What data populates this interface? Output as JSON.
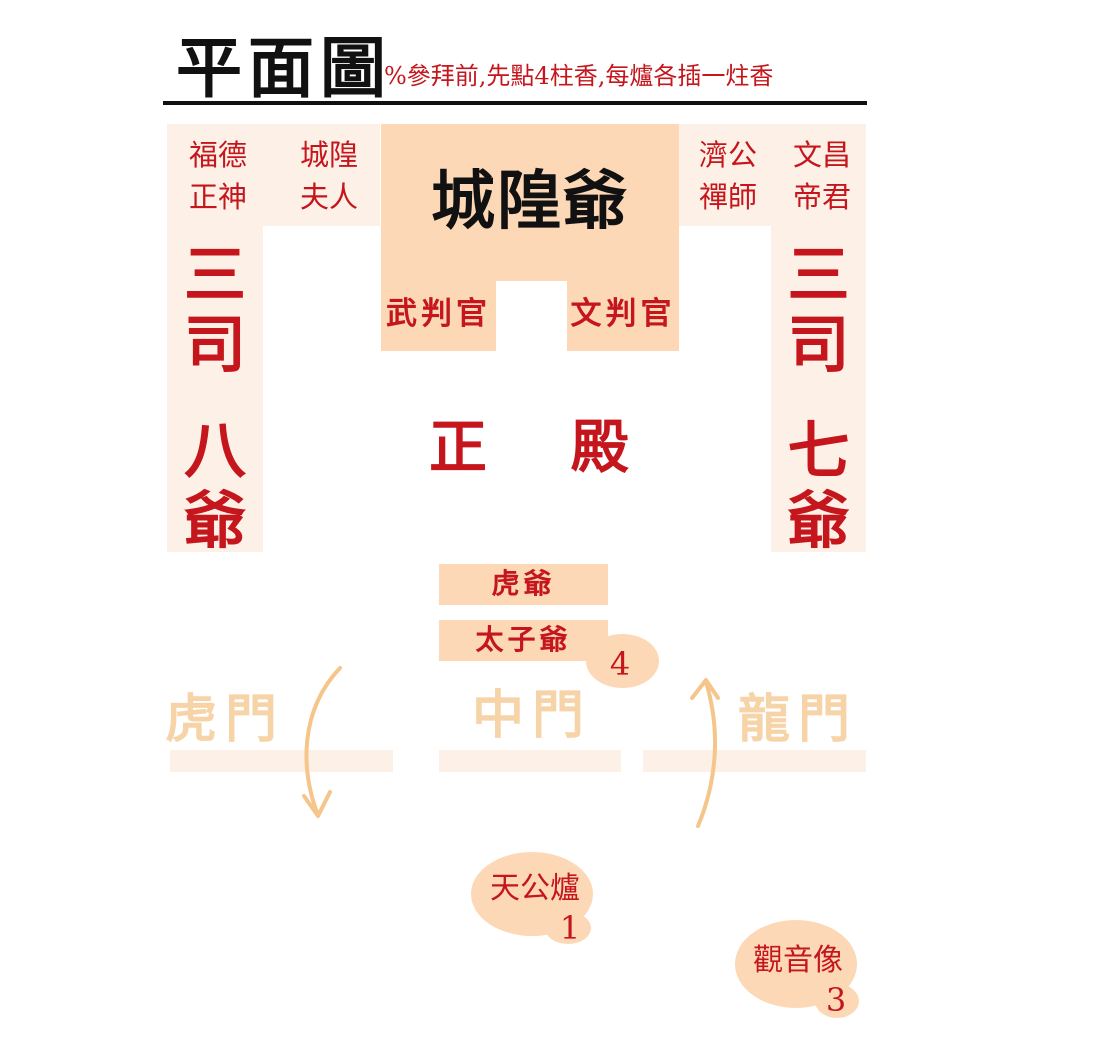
{
  "header": {
    "title": "平面圖",
    "note": "%參拜前,先點4柱香,每爐各插一炷香"
  },
  "deities": {
    "fude": [
      "福德",
      "正神"
    ],
    "furen": [
      "城隍",
      "夫人"
    ],
    "jigong": [
      "濟公",
      "禪師"
    ],
    "wenchang": [
      "文昌",
      "帝君"
    ],
    "main": "城隍爺",
    "wu_judge": "武判官",
    "wen_judge": "文判官",
    "left_col": [
      "三",
      "司",
      "八",
      "爺"
    ],
    "right_col": [
      "三",
      "司",
      "七",
      "爺"
    ],
    "hall": [
      "正",
      "殿"
    ],
    "tiger_lord": "虎爺",
    "prince": "太子爺"
  },
  "gates": {
    "tiger": "虎門",
    "middle": "中門",
    "dragon": "龍門"
  },
  "burners": {
    "prince_num": "4",
    "tiangong": "天公爐",
    "tiangong_num": "1",
    "guanyin": "觀音像",
    "guanyin_num": "3"
  },
  "colors": {
    "red": "#c4161c",
    "block": "#fcd8b6",
    "panel": "#fdf1e7",
    "gate_text": "#f7d3a8",
    "arrow": "#f5c58a"
  }
}
